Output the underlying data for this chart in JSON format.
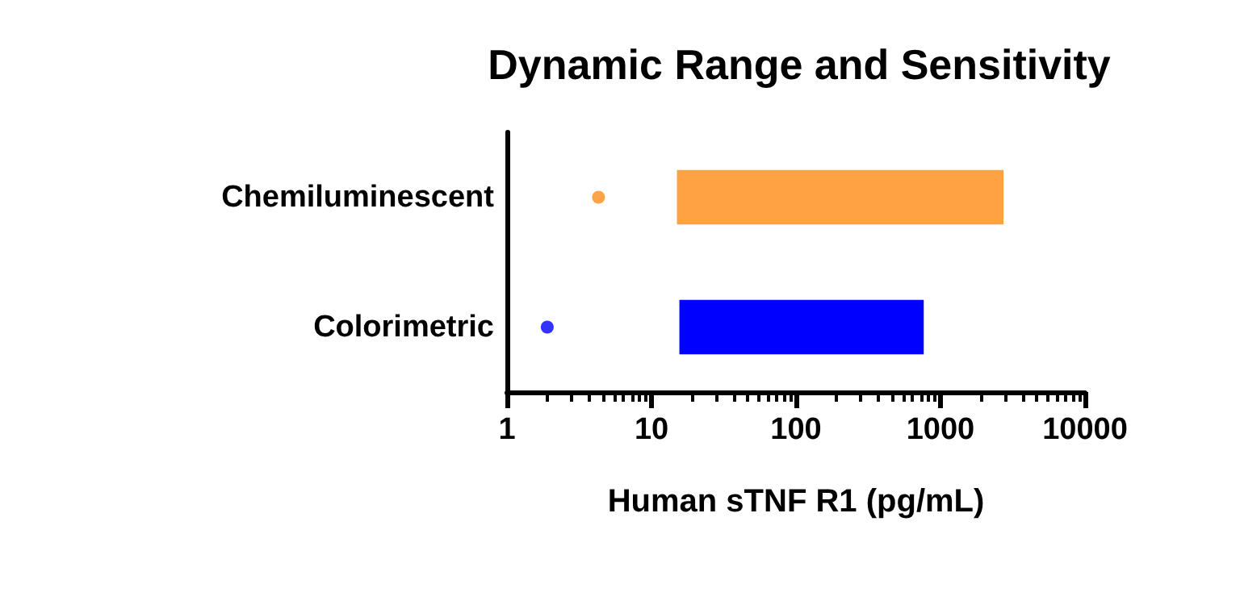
{
  "chart_data": {
    "type": "bar",
    "orientation": "horizontal",
    "title": "Dynamic Range and Sensitivity",
    "xlabel": "Human sTNF R1 (pg/mL)",
    "categories": [
      "Chemiluminescent",
      "Colorimetric"
    ],
    "log": "x",
    "xlim": [
      1,
      10000
    ],
    "xticks": [
      1,
      10,
      100,
      1000,
      10000
    ],
    "grid": false,
    "series": [
      {
        "colors": [
          "#ffa244",
          "#0000ff"
        ],
        "base": [
          15,
          15.6
        ],
        "values": [
          2715,
          750
        ]
      },
      {
        "type": "scatter",
        "marker": "circle",
        "colors": [
          "#ff8c1a",
          "#0000ff"
        ],
        "values": [
          4.3,
          1.9
        ]
      }
    ]
  }
}
